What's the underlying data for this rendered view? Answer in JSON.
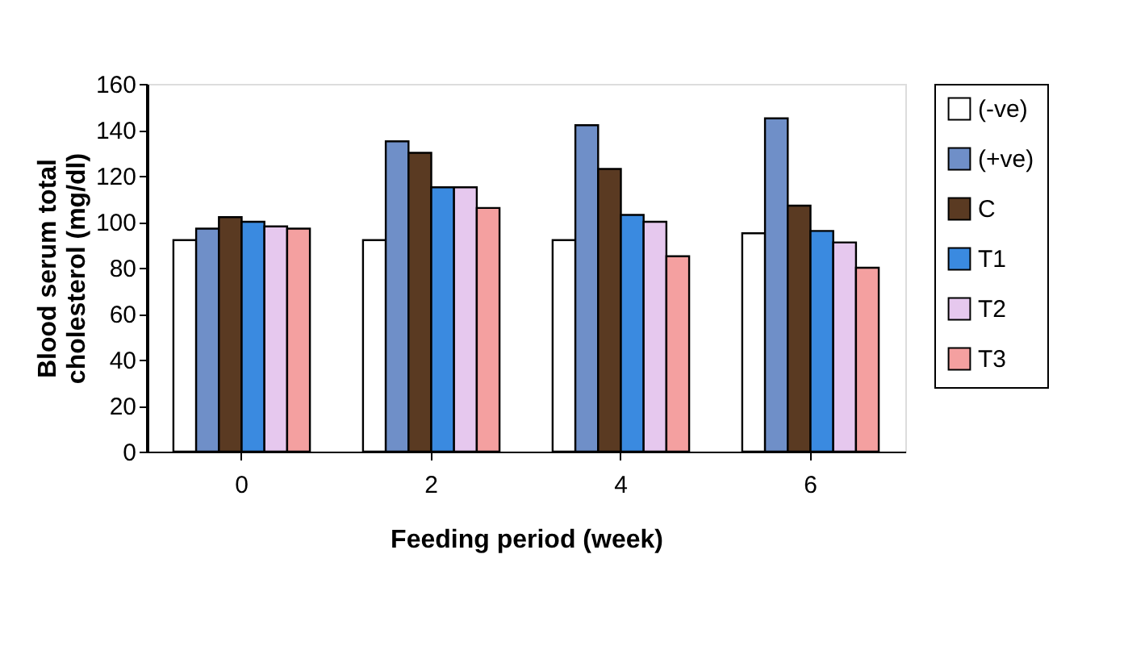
{
  "chart_data": {
    "type": "bar",
    "categories": [
      "0",
      "2",
      "4",
      "6"
    ],
    "xlabel": "Feeding period (week)",
    "ylabel": "Blood serum total cholesterol (mg/dl)",
    "series": [
      {
        "name": "(-ve)",
        "color": "#ffffff",
        "values": [
          92,
          92,
          92,
          95
        ]
      },
      {
        "name": "(+ve)",
        "color": "#6f8fc8",
        "values": [
          97,
          135,
          142,
          145
        ]
      },
      {
        "name": "C",
        "color": "#5a3a22",
        "values": [
          102,
          130,
          123,
          107
        ]
      },
      {
        "name": "T1",
        "color": "#3a8ae0",
        "values": [
          100,
          115,
          103,
          96
        ]
      },
      {
        "name": "T2",
        "color": "#e6c8ee",
        "values": [
          98,
          115,
          100,
          91
        ]
      },
      {
        "name": "T3",
        "color": "#f4a0a0",
        "values": [
          97,
          106,
          85,
          80
        ]
      }
    ],
    "ylim": [
      0,
      160
    ],
    "yticks": [
      0,
      20,
      40,
      60,
      80,
      100,
      120,
      140,
      160
    ],
    "grid": false,
    "legend": "right"
  }
}
